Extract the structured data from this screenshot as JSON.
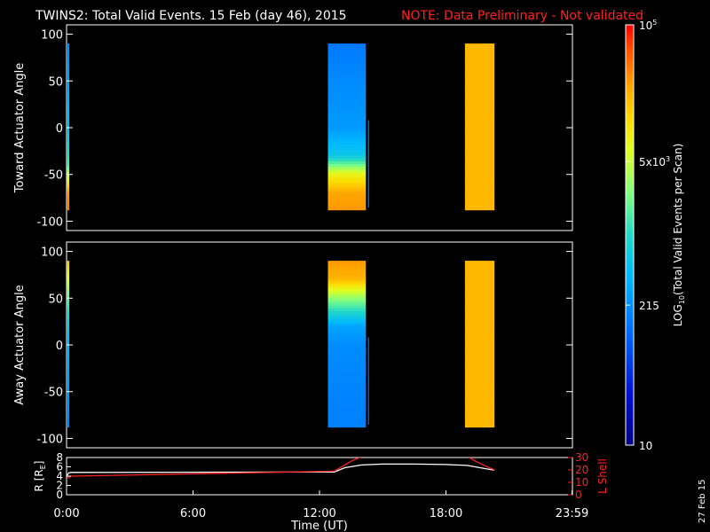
{
  "header": {
    "title": "TWINS2: Total Valid Events. 15 Feb (day  46), 2015",
    "note": "NOTE: Data Preliminary - Not validated"
  },
  "footer": {
    "date_stamp": "27 Feb 15"
  },
  "colors": {
    "background": "#000000",
    "foreground": "#ffffff",
    "note": "#ff2020",
    "lshell": "#ff2020"
  },
  "colorbar": {
    "label": "LOG10(Total Valid Events per Scan)",
    "label_main": "LOG",
    "label_sub": "10",
    "label_rest": "(Total Valid Events per Scan)",
    "scale": "log",
    "range": [
      10,
      100000
    ],
    "ticks": [
      {
        "value": 10,
        "label": "10"
      },
      {
        "value": 215,
        "label": "215"
      },
      {
        "value": 5000,
        "label": "5x10",
        "exp": "3"
      },
      {
        "value": 100000,
        "label": "10",
        "exp": "5"
      }
    ]
  },
  "chart_data": [
    {
      "type": "heatmap",
      "panel": "toward",
      "ylabel": "Toward Actuator Angle",
      "ylim": [
        -110,
        110
      ],
      "yticks": [
        "100",
        "50",
        "0",
        "-50",
        "-100"
      ],
      "ytick_values": [
        100,
        50,
        0,
        -50,
        -100
      ],
      "x_unit": "hours UT",
      "xlim": [
        0,
        24
      ],
      "blocks": [
        {
          "t_start": 0.0,
          "t_end": 0.13,
          "angle_min": -88,
          "angle_max": 90,
          "stops": [
            [
              90,
              200
            ],
            [
              40,
              320
            ],
            [
              0,
              500
            ],
            [
              -40,
              1500
            ],
            [
              -70,
              30000
            ],
            [
              -88,
              40000
            ]
          ]
        },
        {
          "t_start": 12.4,
          "t_end": 14.2,
          "angle_min": -88,
          "angle_max": 90,
          "stops": [
            [
              90,
              150
            ],
            [
              50,
              200
            ],
            [
              0,
              250
            ],
            [
              -30,
              600
            ],
            [
              -50,
              8000
            ],
            [
              -70,
              25000
            ],
            [
              -88,
              30000
            ]
          ]
        },
        {
          "t_start": 14.3,
          "t_end": 14.35,
          "angle_min": -85,
          "angle_max": 8,
          "stops": [
            [
              8,
              150
            ],
            [
              -85,
              150
            ]
          ]
        },
        {
          "t_start": 18.9,
          "t_end": 20.3,
          "angle_min": -88,
          "angle_max": 90,
          "stops": [
            [
              90,
              20000
            ],
            [
              -88,
              20000
            ]
          ]
        }
      ]
    },
    {
      "type": "heatmap",
      "panel": "away",
      "ylabel": "Away Actuator Angle",
      "ylim": [
        -110,
        110
      ],
      "yticks": [
        "100",
        "50",
        "0",
        "-50",
        "-100"
      ],
      "ytick_values": [
        100,
        50,
        0,
        -50,
        -100
      ],
      "x_unit": "hours UT",
      "xlim": [
        0,
        24
      ],
      "blocks": [
        {
          "t_start": 0.0,
          "t_end": 0.13,
          "angle_min": -88,
          "angle_max": 90,
          "stops": [
            [
              90,
              20000
            ],
            [
              60,
              3000
            ],
            [
              30,
              800
            ],
            [
              0,
              400
            ],
            [
              -50,
              250
            ],
            [
              -88,
              180
            ]
          ]
        },
        {
          "t_start": 12.4,
          "t_end": 14.2,
          "angle_min": -88,
          "angle_max": 90,
          "stops": [
            [
              90,
              30000
            ],
            [
              70,
              20000
            ],
            [
              50,
              3000
            ],
            [
              20,
              300
            ],
            [
              0,
              200
            ],
            [
              -50,
              180
            ],
            [
              -88,
              170
            ]
          ]
        },
        {
          "t_start": 14.3,
          "t_end": 14.35,
          "angle_min": -85,
          "angle_max": 8,
          "stops": [
            [
              8,
              120
            ],
            [
              -85,
              120
            ]
          ]
        },
        {
          "t_start": 18.9,
          "t_end": 20.3,
          "angle_min": -88,
          "angle_max": 90,
          "stops": [
            [
              90,
              20000
            ],
            [
              -88,
              20000
            ]
          ]
        }
      ]
    },
    {
      "type": "line",
      "panel": "orbit",
      "xlabel": "Time (UT)",
      "xticks": [
        "0:00",
        "6:00",
        "12:00",
        "18:00",
        "23:59"
      ],
      "xtick_values": [
        0,
        6,
        12,
        18,
        23.98
      ],
      "ylabel_left": "R [R",
      "ylabel_left_sub": "E",
      "ylabel_left_end": "]",
      "ylim_left": [
        0,
        8
      ],
      "yticks_left": [
        "0",
        "2",
        "4",
        "6",
        "8"
      ],
      "ytick_values_left": [
        0,
        2,
        4,
        6,
        8
      ],
      "ylabel_right": "L Shell",
      "ylim_right": [
        0,
        30
      ],
      "yticks_right": [
        "0",
        "10",
        "20",
        "30"
      ],
      "ytick_values_right": [
        0,
        10,
        20,
        30
      ],
      "series": [
        {
          "axis": "left",
          "color": "#ffffff",
          "x": [
            0.0,
            0.1,
            0.2,
            12.7,
            13.2,
            14.0,
            15.0,
            16.5,
            18.0,
            19.0,
            20.0,
            20.3
          ],
          "y": [
            4.0,
            4.7,
            4.8,
            4.9,
            5.8,
            6.4,
            6.6,
            6.6,
            6.5,
            6.3,
            5.5,
            5.3
          ]
        },
        {
          "axis": "right",
          "color": "#ff2020",
          "x": [
            0.0,
            0.2,
            12.7,
            13.5,
            14.3
          ],
          "y": [
            13,
            15,
            19,
            27,
            33
          ]
        },
        {
          "axis": "right",
          "color": "#ff2020",
          "x": [
            19.0,
            19.4,
            19.9,
            20.3
          ],
          "y": [
            31,
            27,
            23,
            20
          ]
        }
      ]
    }
  ]
}
